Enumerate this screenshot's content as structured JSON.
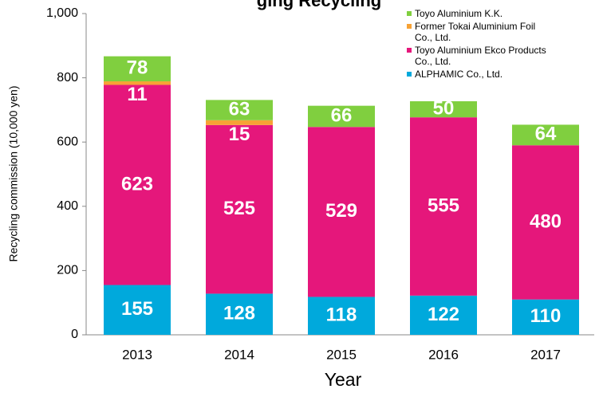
{
  "chart_data": {
    "type": "stacked_bar",
    "title": "ging Recycling",
    "x_label": "Year",
    "y_label": "Recycling commission (10,000 yen)",
    "categories": [
      "2013",
      "2014",
      "2015",
      "2016",
      "2017"
    ],
    "series": [
      {
        "name": "ALPHAMIC Co., Ltd.",
        "color": "#00a9dc",
        "values": [
          155,
          128,
          118,
          122,
          110
        ]
      },
      {
        "name": "Toyo Aluminium Ekco Products Co., Ltd.",
        "color": "#e5177b",
        "values": [
          623,
          525,
          529,
          555,
          480
        ]
      },
      {
        "name": "Former Tokai Aluminium Foil Co., Ltd.",
        "color": "#f7a235",
        "values": [
          11,
          15,
          null,
          null,
          null
        ]
      },
      {
        "name": "Toyo Aluminium K.K.",
        "color": "#80cf3f",
        "values": [
          78,
          63,
          66,
          50,
          64
        ]
      }
    ],
    "ylim": [
      0,
      1000
    ],
    "yticks": [
      0,
      200,
      400,
      600,
      800,
      {
        "value": 1000,
        "label": "1,000"
      }
    ],
    "legend": "top-right"
  }
}
